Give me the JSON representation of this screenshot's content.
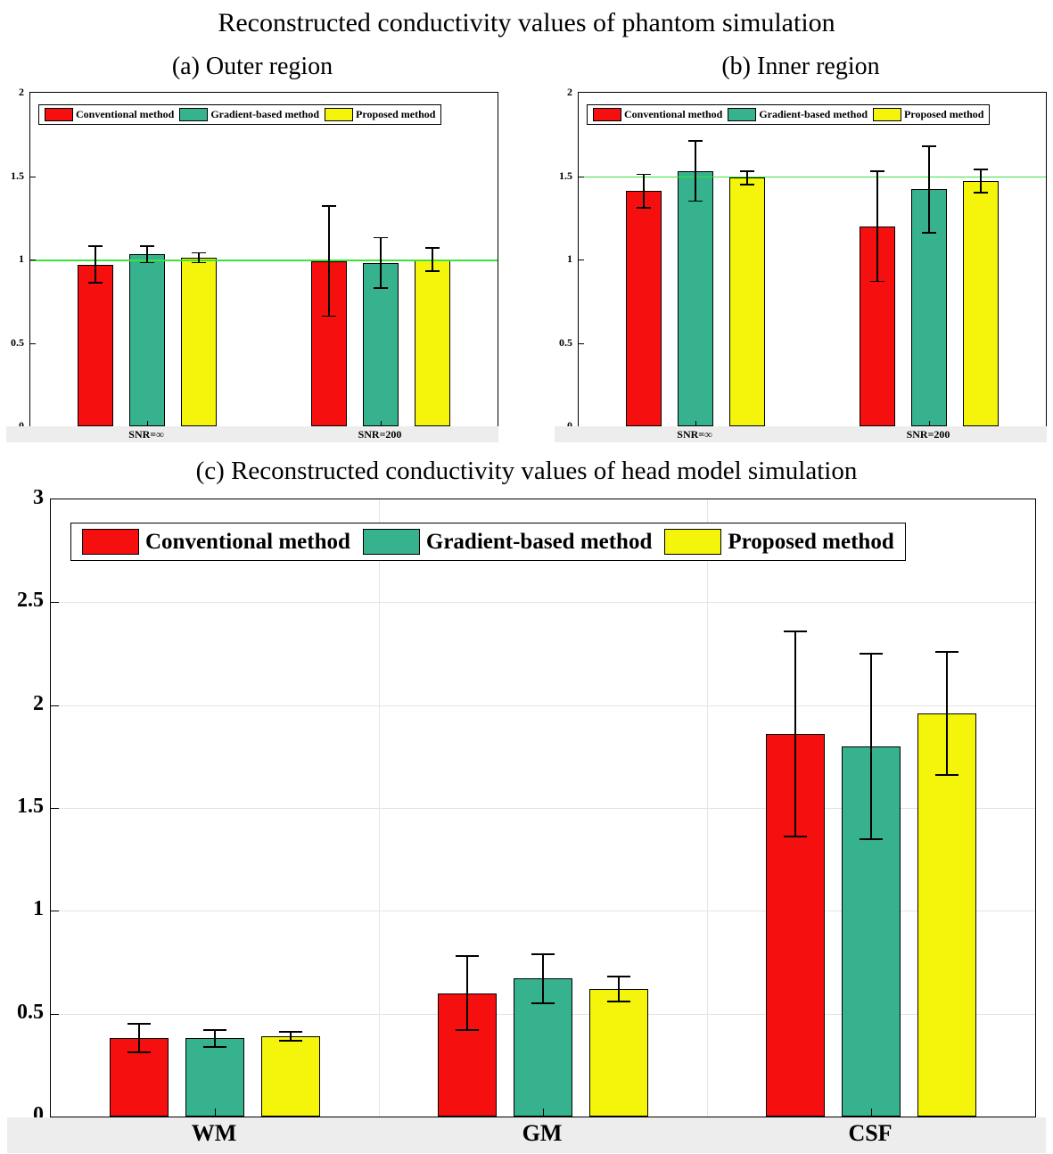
{
  "figure": {
    "main_title": "Reconstructed conductivity values of phantom simulation"
  },
  "colors": {
    "conventional": "#f50f0f",
    "gradient_based": "#36b28e",
    "proposed": "#f5f50c",
    "reference_line": "#3be33b",
    "bar_border": "#000000",
    "grid": "#e4e4e4",
    "tick_band": "#ededed"
  },
  "chart_data": [
    {
      "type": "bar",
      "title": "(a) Outer region",
      "xlabel": "",
      "ylabel": "",
      "categories": [
        "SNR=∞",
        "SNR=200"
      ],
      "series": [
        {
          "name": "Conventional method",
          "color_key": "conventional",
          "values": [
            0.97,
            0.99
          ],
          "errors": [
            0.11,
            0.33
          ]
        },
        {
          "name": "Gradient-based method",
          "color_key": "gradient_based",
          "values": [
            1.03,
            0.98
          ],
          "errors": [
            0.05,
            0.15
          ]
        },
        {
          "name": "Proposed method",
          "color_key": "proposed",
          "values": [
            1.01,
            1.0
          ],
          "errors": [
            0.03,
            0.07
          ]
        }
      ],
      "ylim": [
        0,
        2
      ],
      "yticks": [
        0,
        0.5,
        1,
        1.5,
        2
      ],
      "ytick_labels": [
        "0",
        "0.5",
        "1",
        "1.5",
        "2"
      ],
      "reference_line": 1.0,
      "grid": false,
      "legend_position": "top-left"
    },
    {
      "type": "bar",
      "title": "(b) Inner region",
      "xlabel": "",
      "ylabel": "",
      "categories": [
        "SNR=∞",
        "SNR=200"
      ],
      "series": [
        {
          "name": "Conventional method",
          "color_key": "conventional",
          "values": [
            1.41,
            1.2
          ],
          "errors": [
            0.1,
            0.33
          ]
        },
        {
          "name": "Gradient-based method",
          "color_key": "gradient_based",
          "values": [
            1.53,
            1.42
          ],
          "errors": [
            0.18,
            0.26
          ]
        },
        {
          "name": "Proposed method",
          "color_key": "proposed",
          "values": [
            1.49,
            1.47
          ],
          "errors": [
            0.04,
            0.07
          ]
        }
      ],
      "ylim": [
        0,
        2
      ],
      "yticks": [
        0,
        0.5,
        1,
        1.5,
        2
      ],
      "ytick_labels": [
        "0",
        "0.5",
        "1",
        "1.5",
        "2"
      ],
      "reference_line": 1.5,
      "grid": false,
      "legend_position": "top-left"
    },
    {
      "type": "bar",
      "title": "(c) Reconstructed conductivity values of head model simulation",
      "xlabel": "",
      "ylabel": "",
      "categories": [
        "WM",
        "GM",
        "CSF"
      ],
      "series": [
        {
          "name": "Conventional method",
          "color_key": "conventional",
          "values": [
            0.38,
            0.6,
            1.86
          ],
          "errors": [
            0.07,
            0.18,
            0.5
          ]
        },
        {
          "name": "Gradient-based method",
          "color_key": "gradient_based",
          "values": [
            0.38,
            0.67,
            1.8
          ],
          "errors": [
            0.04,
            0.12,
            0.45
          ]
        },
        {
          "name": "Proposed method",
          "color_key": "proposed",
          "values": [
            0.39,
            0.62,
            1.96
          ],
          "errors": [
            0.02,
            0.06,
            0.3
          ]
        }
      ],
      "ylim": [
        0,
        3
      ],
      "yticks": [
        0,
        0.5,
        1,
        1.5,
        2,
        2.5,
        3
      ],
      "ytick_labels": [
        "0",
        "0.5",
        "1",
        "1.5",
        "2",
        "2.5",
        "3"
      ],
      "reference_line": null,
      "grid": true,
      "legend_position": "top-left"
    }
  ]
}
